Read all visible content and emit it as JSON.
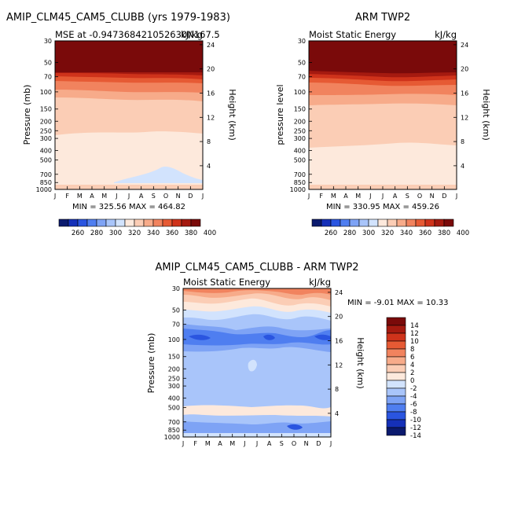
{
  "chart_data": [
    {
      "type": "heatmap",
      "title": "AMIP_CLM45_CAM5_CLUBB (yrs 1979-1983)",
      "subtitle_left": "MSE at -0.947368421052630N167.5",
      "subtitle_right": "kJ/kg",
      "ylabel": "Pressure (mb)",
      "y2label": "Height (km)",
      "months": [
        "J",
        "F",
        "M",
        "A",
        "M",
        "J",
        "J",
        "A",
        "S",
        "O",
        "N",
        "D",
        "J"
      ],
      "pressure_ticks": [
        "30",
        "50",
        "70",
        "100",
        "150",
        "200",
        "250",
        "300",
        "400",
        "500",
        "700",
        "850",
        "1000"
      ],
      "height_ticks": [
        "24",
        "20",
        "16",
        "12",
        "8",
        "4"
      ],
      "stats_text": "MIN = 325.56  MAX = 464.82",
      "min": 325.56,
      "max": 464.82,
      "colorbar_labels": [
        "260",
        "280",
        "300",
        "320",
        "340",
        "360",
        "380",
        "400"
      ],
      "colorbar_orientation": "horizontal"
    },
    {
      "type": "heatmap",
      "title": "ARM TWP2",
      "subtitle_left": "Moist Static Energy",
      "subtitle_right": "kJ/kg",
      "ylabel": "pressure level",
      "y2label": "Height (km)",
      "months": [
        "J",
        "F",
        "M",
        "A",
        "M",
        "J",
        "J",
        "A",
        "S",
        "O",
        "N",
        "D",
        "J"
      ],
      "pressure_ticks": [
        "30",
        "50",
        "70",
        "100",
        "150",
        "200",
        "250",
        "300",
        "400",
        "500",
        "700",
        "850",
        "1000"
      ],
      "height_ticks": [
        "24",
        "20",
        "16",
        "12",
        "8",
        "4"
      ],
      "stats_text": "MIN = 330.95  MAX = 459.26",
      "min": 330.95,
      "max": 459.26,
      "colorbar_labels": [
        "260",
        "280",
        "300",
        "320",
        "340",
        "360",
        "380",
        "400"
      ],
      "colorbar_orientation": "horizontal"
    },
    {
      "type": "heatmap",
      "title": "AMIP_CLM45_CAM5_CLUBB - ARM TWP2",
      "subtitle_left": "Moist Static Energy",
      "subtitle_right": "kJ/kg",
      "ylabel": "Pressure (mb)",
      "y2label": "Height (km)",
      "months": [
        "J",
        "F",
        "M",
        "A",
        "M",
        "J",
        "J",
        "A",
        "S",
        "O",
        "N",
        "D",
        "J"
      ],
      "pressure_ticks": [
        "30",
        "50",
        "70",
        "100",
        "150",
        "200",
        "250",
        "300",
        "400",
        "500",
        "700",
        "850",
        "1000"
      ],
      "height_ticks": [
        "24",
        "20",
        "16",
        "12",
        "8",
        "4"
      ],
      "stats_text": "MIN =   -9.01  MAX =   10.33",
      "min": -9.01,
      "max": 10.33,
      "colorbar_labels": [
        "14",
        "12",
        "10",
        "8",
        "6",
        "4",
        "2",
        "0",
        "-2",
        "-4",
        "-6",
        "-8",
        "-10",
        "-12",
        "-14"
      ],
      "colorbar_orientation": "vertical"
    }
  ],
  "colors": {
    "mse_scale": [
      "#0b1a6e",
      "#1530b8",
      "#2a55e0",
      "#4f7ef0",
      "#7ea3f5",
      "#a9c5fa",
      "#d2e3fd",
      "#fde9dc",
      "#fbcdb5",
      "#f7ab8a",
      "#f1835e",
      "#e65a34",
      "#cf331b",
      "#a51a10",
      "#7a0a0a"
    ],
    "diff_scale": [
      "#7a0a0a",
      "#a51a10",
      "#cf331b",
      "#e65a34",
      "#f1835e",
      "#f7ab8a",
      "#fbcdb5",
      "#fde9dc",
      "#d2e3fd",
      "#a9c5fa",
      "#7ea3f5",
      "#4f7ef0",
      "#2a55e0",
      "#1530b8",
      "#0b1a6e"
    ]
  }
}
